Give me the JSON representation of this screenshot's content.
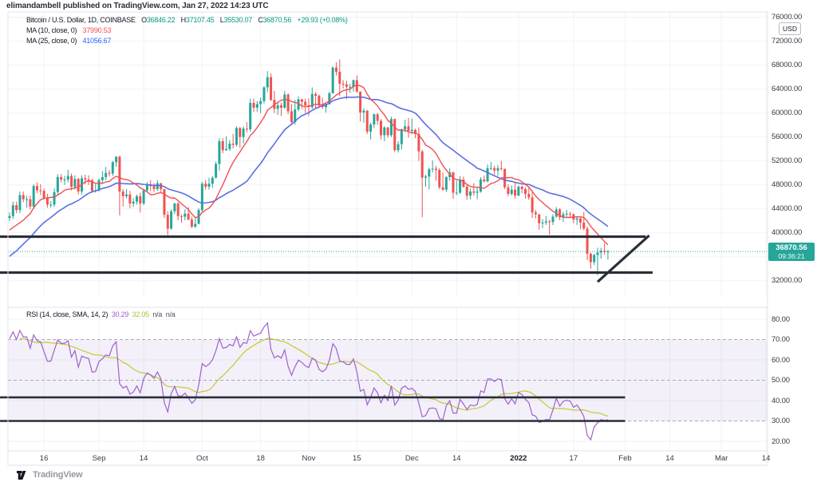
{
  "header": {
    "text": "elimandambell published on TradingView.com, Jan 27, 2022 14:23 UTC"
  },
  "footer": {
    "brand": "TradingView"
  },
  "legend": {
    "symbol": "Bitcoin / U.S. Dollar, 1D, COINBASE",
    "o_label": "O",
    "o": "36846.22",
    "h_label": "H",
    "h": "37107.45",
    "l_label": "L",
    "l": "35530.07",
    "c_label": "C",
    "c": "36870.56",
    "change": "+29.93 (+0.08%)",
    "ma10_label": "MA (10, close, 0)",
    "ma10_value": "37990.53",
    "ma25_label": "MA (25, close, 0)",
    "ma25_value": "41056.67"
  },
  "rsi_legend": {
    "label": "RSI (14, close, SMA, 14, 2)",
    "rsi_value": "30.29",
    "sma_value": "32.05",
    "na1": "n/a",
    "na2": "n/a"
  },
  "price_tag": {
    "price": "36870.56",
    "countdown": "09:36:21"
  },
  "unit_badge": "USD",
  "price_axis": {
    "labels": [
      {
        "value": 76000,
        "text": "76000.00"
      },
      {
        "value": 72000,
        "text": "72000.00"
      },
      {
        "value": 68000,
        "text": "68000.00"
      },
      {
        "value": 64000,
        "text": "64000.00"
      },
      {
        "value": 60000,
        "text": "60000.00"
      },
      {
        "value": 56000,
        "text": "56000.00"
      },
      {
        "value": 52000,
        "text": "52000.00"
      },
      {
        "value": 48000,
        "text": "48000.00"
      },
      {
        "value": 44000,
        "text": "44000.00"
      },
      {
        "value": 40000,
        "text": "40000.00"
      },
      {
        "value": 32000,
        "text": "32000.00"
      }
    ]
  },
  "rsi_axis": {
    "labels": [
      {
        "value": 80,
        "text": "80.00"
      },
      {
        "value": 70,
        "text": "70.00"
      },
      {
        "value": 60,
        "text": "60.00"
      },
      {
        "value": 50,
        "text": "50.00"
      },
      {
        "value": 40,
        "text": "40.00"
      },
      {
        "value": 30,
        "text": "30.00"
      },
      {
        "value": 20,
        "text": "20.00"
      }
    ]
  },
  "time_axis": {
    "ticks": [
      {
        "label": "16",
        "i": 10,
        "bold": false
      },
      {
        "label": "Sep",
        "i": 26,
        "bold": false
      },
      {
        "label": "14",
        "i": 39,
        "bold": false
      },
      {
        "label": "Oct",
        "i": 56,
        "bold": false
      },
      {
        "label": "18",
        "i": 73,
        "bold": false
      },
      {
        "label": "Nov",
        "i": 87,
        "bold": false
      },
      {
        "label": "15",
        "i": 101,
        "bold": false
      },
      {
        "label": "Dec",
        "i": 117,
        "bold": false
      },
      {
        "label": "14",
        "i": 130,
        "bold": false
      },
      {
        "label": "2022",
        "i": 148,
        "bold": true
      },
      {
        "label": "17",
        "i": 164,
        "bold": false
      },
      {
        "label": "Feb",
        "i": 179,
        "bold": false
      },
      {
        "label": "14",
        "i": 192,
        "bold": false
      },
      {
        "label": "Mar",
        "i": 207,
        "bold": false
      },
      {
        "label": "14",
        "i": 220,
        "bold": false
      }
    ]
  },
  "colors": {
    "up": "#26a69a",
    "down": "#ef5350",
    "ma10": "#f04e55",
    "ma25": "#5a6fe3",
    "rsi": "#9d61cc",
    "rsi_sma": "#c3ca34",
    "band_fill": "rgba(126,87,194,0.09)",
    "band_border": "#a9abb5",
    "drawing": "#2a2e39",
    "grid": "#f0f2f6",
    "border": "#e0e3eb",
    "current_price_line": "#26a69a",
    "tag_bg": "#26a69a",
    "legend_value": "#089981"
  },
  "chart_data": {
    "type": "candlestick",
    "title": "Bitcoin / U.S. Dollar, 1D, COINBASE",
    "ylabel": "USD",
    "price_axis_range": [
      30000,
      77500
    ],
    "grid_step": 4000,
    "rsi_axis_range": [
      15,
      85
    ],
    "ohlc_current": {
      "o": 36846.22,
      "h": 37107.45,
      "l": 35530.07,
      "c": 36870.56
    },
    "indicators": {
      "ma10": {
        "type": "SMA",
        "length": 10,
        "source": "close",
        "last": 37990.53
      },
      "ma25": {
        "type": "SMA",
        "length": 25,
        "source": "close",
        "last": 41056.67
      },
      "rsi": {
        "type": "RSI",
        "length": 14,
        "source": "close",
        "last": 30.29,
        "sma_length": 14,
        "sma_last": 32.05,
        "band": [
          30,
          70
        ],
        "mid": 50
      }
    },
    "drawings": {
      "price_h_lines": [
        {
          "value": 39350,
          "from_day": -3,
          "to_day": 185
        },
        {
          "value": 33350,
          "from_day": -3,
          "to_day": 187
        }
      ],
      "price_diagonal": {
        "from": {
          "day": 171,
          "value": 31800
        },
        "to": {
          "day": 186,
          "value": 39550
        }
      },
      "rsi_h_lines": [
        {
          "value": 41.6,
          "from_day": -3,
          "to_day": 179
        },
        {
          "value": 30.0,
          "from_day": -3,
          "to_day": 179
        }
      ]
    },
    "pre_closes": [
      32700,
      32800,
      31900,
      31400,
      31500,
      31800,
      30800,
      29800,
      32100,
      32300,
      33600,
      34300,
      35400,
      37200,
      39500,
      40000,
      40000,
      42200,
      41500,
      39900,
      39200,
      38200,
      39700,
      40900
    ],
    "candles": [
      [
        42500,
        43400,
        42000,
        42800
      ],
      [
        42800,
        45200,
        42300,
        44600
      ],
      [
        44600,
        45200,
        43300,
        43800
      ],
      [
        43800,
        46900,
        43300,
        46300
      ],
      [
        46300,
        46900,
        45100,
        45600
      ],
      [
        45600,
        46200,
        44200,
        45600
      ],
      [
        45600,
        46200,
        43900,
        44400
      ],
      [
        44400,
        48100,
        44000,
        47800
      ],
      [
        47800,
        48400,
        46600,
        47100
      ],
      [
        47100,
        48100,
        46300,
        47000
      ],
      [
        47000,
        47400,
        45500,
        45900
      ],
      [
        45900,
        46500,
        44200,
        44700
      ],
      [
        44700,
        45300,
        44200,
        44700
      ],
      [
        44700,
        47400,
        44300,
        46800
      ],
      [
        46800,
        49800,
        46400,
        49300
      ],
      [
        49300,
        49800,
        48400,
        48900
      ],
      [
        48900,
        49500,
        48000,
        48900
      ],
      [
        48900,
        50500,
        48400,
        49500
      ],
      [
        49500,
        49900,
        47100,
        47700
      ],
      [
        47700,
        49600,
        47200,
        49000
      ],
      [
        49000,
        49200,
        46400,
        46900
      ],
      [
        46900,
        49600,
        46400,
        49100
      ],
      [
        49100,
        49700,
        48100,
        48900
      ],
      [
        48900,
        49600,
        48000,
        48800
      ],
      [
        48800,
        49000,
        46700,
        47000
      ],
      [
        47000,
        48200,
        46700,
        47100
      ],
      [
        47100,
        49100,
        46900,
        48800
      ],
      [
        48800,
        50300,
        48300,
        49300
      ],
      [
        49300,
        51000,
        48800,
        50000
      ],
      [
        50000,
        50500,
        49400,
        49900
      ],
      [
        49900,
        52000,
        49500,
        51800
      ],
      [
        51800,
        52800,
        51000,
        52700
      ],
      [
        52700,
        52900,
        42900,
        46900
      ],
      [
        46900,
        47300,
        44400,
        46100
      ],
      [
        46100,
        47300,
        45700,
        46400
      ],
      [
        46400,
        47000,
        44100,
        44900
      ],
      [
        44900,
        45800,
        44300,
        45200
      ],
      [
        45200,
        46400,
        44700,
        46100
      ],
      [
        46100,
        46700,
        43400,
        44900
      ],
      [
        44900,
        47300,
        44600,
        47100
      ],
      [
        47100,
        48500,
        46700,
        48100
      ],
      [
        48100,
        48800,
        47000,
        47800
      ],
      [
        47800,
        48300,
        46800,
        47300
      ],
      [
        47300,
        48800,
        47000,
        48300
      ],
      [
        48300,
        48300,
        46800,
        47300
      ],
      [
        47300,
        47300,
        42500,
        43000
      ],
      [
        43000,
        43600,
        39600,
        40700
      ],
      [
        40700,
        43900,
        40500,
        43600
      ],
      [
        43600,
        45000,
        43100,
        44900
      ],
      [
        44900,
        45100,
        42100,
        42800
      ],
      [
        42800,
        43000,
        41700,
        42700
      ],
      [
        42700,
        43900,
        42100,
        43200
      ],
      [
        43200,
        44300,
        42100,
        42200
      ],
      [
        42200,
        42700,
        40800,
        41000
      ],
      [
        41000,
        42600,
        40800,
        41500
      ],
      [
        41500,
        44100,
        41400,
        43800
      ],
      [
        43800,
        48500,
        43300,
        48200
      ],
      [
        48200,
        48800,
        47200,
        47700
      ],
      [
        47700,
        49200,
        47200,
        48200
      ],
      [
        48200,
        49500,
        47500,
        49200
      ],
      [
        49200,
        51900,
        49100,
        51500
      ],
      [
        51500,
        55800,
        50400,
        55300
      ],
      [
        55300,
        55800,
        53300,
        53800
      ],
      [
        53800,
        56100,
        53700,
        54000
      ],
      [
        54000,
        55500,
        53700,
        54900
      ],
      [
        54900,
        56500,
        54100,
        54700
      ],
      [
        54700,
        57800,
        54400,
        57500
      ],
      [
        57500,
        57700,
        54200,
        56000
      ],
      [
        56000,
        57800,
        54900,
        57400
      ],
      [
        57400,
        58500,
        56800,
        57300
      ],
      [
        57300,
        62400,
        56900,
        61700
      ],
      [
        61700,
        62400,
        60200,
        60900
      ],
      [
        60900,
        62000,
        60200,
        61500
      ],
      [
        61500,
        62600,
        60000,
        62000
      ],
      [
        62000,
        64500,
        61600,
        64300
      ],
      [
        64300,
        67000,
        63500,
        66000
      ],
      [
        66000,
        66600,
        62000,
        62200
      ],
      [
        62200,
        63700,
        60000,
        60700
      ],
      [
        60700,
        61700,
        59700,
        61300
      ],
      [
        61300,
        61700,
        59500,
        60900
      ],
      [
        60900,
        63700,
        60700,
        63100
      ],
      [
        63100,
        63300,
        59800,
        60300
      ],
      [
        60300,
        61500,
        58100,
        58500
      ],
      [
        58500,
        62200,
        58100,
        60600
      ],
      [
        60600,
        62800,
        60300,
        62300
      ],
      [
        62300,
        62400,
        60700,
        61900
      ],
      [
        61900,
        62400,
        60000,
        61300
      ],
      [
        61300,
        62500,
        59500,
        61000
      ],
      [
        61000,
        64300,
        60700,
        63200
      ],
      [
        63200,
        63500,
        60900,
        62900
      ],
      [
        62900,
        63100,
        60800,
        61400
      ],
      [
        61400,
        62600,
        60700,
        61000
      ],
      [
        61000,
        61600,
        60100,
        61500
      ],
      [
        61500,
        63600,
        61400,
        63300
      ],
      [
        63300,
        67800,
        63300,
        67600
      ],
      [
        67600,
        68500,
        66300,
        66900
      ],
      [
        66900,
        69000,
        62800,
        64900
      ],
      [
        64900,
        65500,
        64100,
        64800
      ],
      [
        64800,
        65400,
        62300,
        64400
      ],
      [
        64400,
        64900,
        63400,
        64400
      ],
      [
        64400,
        65600,
        63600,
        65500
      ],
      [
        65500,
        66300,
        63400,
        63600
      ],
      [
        63600,
        63600,
        58600,
        60100
      ],
      [
        60100,
        60800,
        58400,
        60400
      ],
      [
        60400,
        60500,
        56500,
        56900
      ],
      [
        56900,
        58400,
        55600,
        58100
      ],
      [
        58100,
        59900,
        57500,
        59800
      ],
      [
        59800,
        60000,
        58000,
        58700
      ],
      [
        58700,
        59000,
        55600,
        56300
      ],
      [
        56300,
        57800,
        55300,
        57600
      ],
      [
        57600,
        57700,
        55900,
        56300
      ],
      [
        56300,
        59400,
        56000,
        59000
      ],
      [
        59000,
        59100,
        53500,
        53800
      ],
      [
        53800,
        55300,
        53400,
        54800
      ],
      [
        54800,
        57400,
        53900,
        57300
      ],
      [
        57300,
        58900,
        56800,
        57800
      ],
      [
        57800,
        59200,
        55900,
        57000
      ],
      [
        57000,
        59100,
        56500,
        57200
      ],
      [
        57200,
        57400,
        55800,
        56500
      ],
      [
        56500,
        57600,
        52000,
        53600
      ],
      [
        53600,
        53900,
        42600,
        49200
      ],
      [
        49200,
        49700,
        47700,
        49400
      ],
      [
        49400,
        50900,
        47300,
        50600
      ],
      [
        50600,
        52100,
        50100,
        50700
      ],
      [
        50700,
        51200,
        48700,
        50500
      ],
      [
        50500,
        50800,
        47300,
        47600
      ],
      [
        47600,
        50100,
        47000,
        47200
      ],
      [
        47200,
        49500,
        46800,
        49300
      ],
      [
        49300,
        50800,
        48700,
        50100
      ],
      [
        50100,
        50200,
        45700,
        46700
      ],
      [
        46700,
        48700,
        46300,
        46700
      ],
      [
        46700,
        49500,
        46500,
        48900
      ],
      [
        48900,
        49400,
        47500,
        47700
      ],
      [
        47700,
        48000,
        45500,
        46200
      ],
      [
        46200,
        47400,
        45600,
        46900
      ],
      [
        46900,
        48300,
        46200,
        46700
      ],
      [
        46700,
        47500,
        45600,
        46900
      ],
      [
        46900,
        49300,
        46700,
        48900
      ],
      [
        48900,
        49600,
        48400,
        48600
      ],
      [
        48600,
        51400,
        48400,
        50800
      ],
      [
        50800,
        51800,
        50500,
        50800
      ],
      [
        50800,
        51200,
        49700,
        50400
      ],
      [
        50400,
        51300,
        49500,
        50800
      ],
      [
        50800,
        52000,
        50400,
        50700
      ],
      [
        50700,
        50700,
        47300,
        47600
      ],
      [
        47600,
        48100,
        46100,
        46500
      ],
      [
        46500,
        47900,
        46200,
        47200
      ],
      [
        47200,
        48500,
        45700,
        46200
      ],
      [
        46200,
        47900,
        46200,
        47700
      ],
      [
        47700,
        47900,
        46600,
        47300
      ],
      [
        47300,
        47600,
        45700,
        46500
      ],
      [
        46500,
        47500,
        45500,
        45900
      ],
      [
        45900,
        47100,
        42500,
        43400
      ],
      [
        43400,
        43800,
        42400,
        43100
      ],
      [
        43100,
        43100,
        40500,
        41600
      ],
      [
        41600,
        42300,
        40800,
        41700
      ],
      [
        41700,
        42800,
        41300,
        41900
      ],
      [
        41900,
        42200,
        39700,
        41800
      ],
      [
        41800,
        43100,
        41300,
        42700
      ],
      [
        42700,
        44300,
        42500,
        43900
      ],
      [
        43900,
        44100,
        42100,
        42600
      ],
      [
        42600,
        43500,
        41800,
        43100
      ],
      [
        43100,
        43800,
        42600,
        43200
      ],
      [
        43200,
        43500,
        42600,
        43100
      ],
      [
        43100,
        43200,
        41600,
        42200
      ],
      [
        42200,
        42700,
        41300,
        42400
      ],
      [
        42400,
        42700,
        40600,
        41700
      ],
      [
        41700,
        43500,
        40400,
        40700
      ],
      [
        40700,
        41100,
        35400,
        36500
      ],
      [
        36500,
        36700,
        34000,
        35100
      ],
      [
        35100,
        36500,
        34600,
        36300
      ],
      [
        36300,
        37500,
        32900,
        36700
      ],
      [
        36700,
        37500,
        35700,
        37000
      ],
      [
        37000,
        38300,
        36300,
        36800
      ],
      [
        36846,
        37107,
        35530,
        36871
      ]
    ]
  }
}
